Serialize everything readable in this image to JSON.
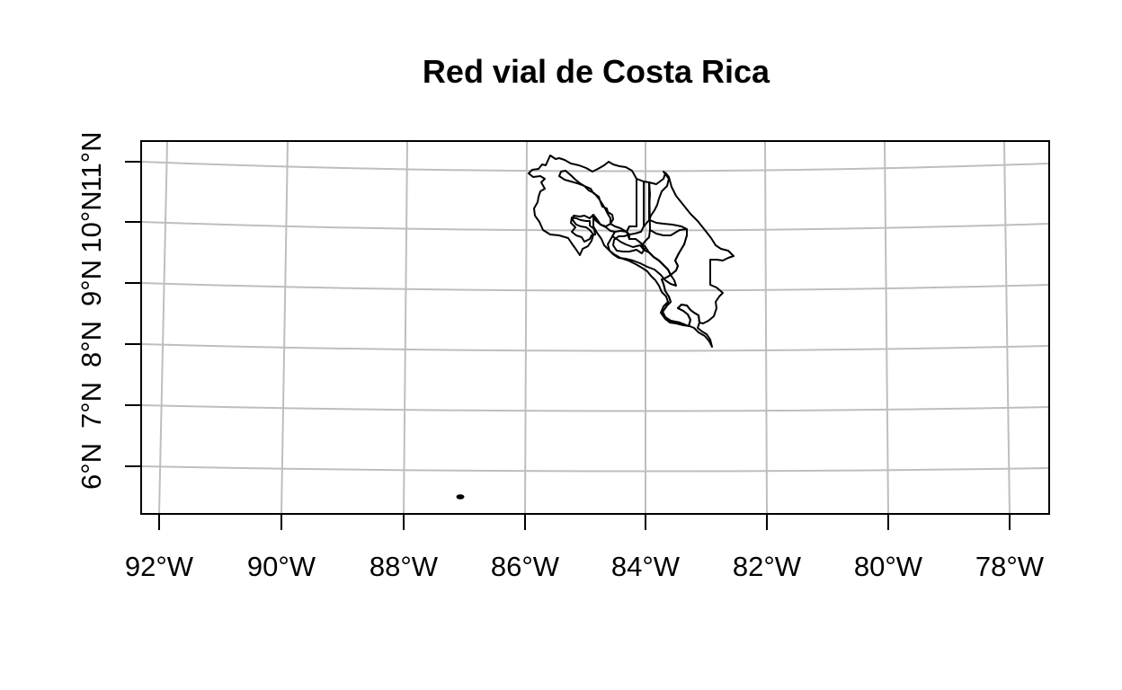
{
  "title": "Red vial de Costa Rica",
  "x_axis": {
    "tick_labels": [
      "92°W",
      "90°W",
      "88°W",
      "86°W",
      "84°W",
      "82°W",
      "80°W",
      "78°W"
    ]
  },
  "y_axis": {
    "tick_labels": [
      "6°N",
      "7°N",
      "8°N",
      "9°N",
      "10°N",
      "11°N"
    ]
  },
  "map_data": {
    "type": "map",
    "subject": "Costa Rica provinces",
    "projection": "projected (curved graticule)",
    "longitude_range_deg": [
      -92.3,
      -77.3
    ],
    "latitude_range_deg": [
      5.3,
      11.5
    ],
    "graticule": true,
    "graticule_color": "#bebebe",
    "boundary_color": "#000000",
    "features": [
      "provinces",
      "Isla del Coco"
    ]
  }
}
